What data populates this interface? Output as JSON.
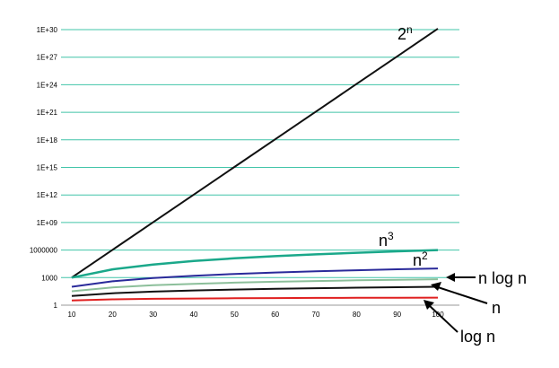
{
  "chart_data": {
    "type": "line",
    "title": "",
    "xlabel": "",
    "ylabel": "",
    "y_scale": "log",
    "grid": "horizontal",
    "grid_color": "#40c4a8",
    "x": [
      10,
      20,
      30,
      40,
      50,
      60,
      70,
      80,
      90,
      100
    ],
    "x_tick_labels": [
      "10",
      "20",
      "30",
      "40",
      "50",
      "60",
      "70",
      "80",
      "90",
      "100"
    ],
    "xlim": [
      10,
      100
    ],
    "y_ticks": [
      {
        "value": 1,
        "label": "1"
      },
      {
        "value": 1000,
        "label": "1000"
      },
      {
        "value": 1000000,
        "label": "1000000"
      },
      {
        "value": 1000000000.0,
        "label": "1E+09"
      },
      {
        "value": 1000000000000.0,
        "label": "1E+12"
      },
      {
        "value": 1000000000000000.0,
        "label": "1E+15"
      },
      {
        "value": 1e+18,
        "label": "1E+18"
      },
      {
        "value": 1e+21,
        "label": "1E+21"
      },
      {
        "value": 1e+24,
        "label": "1E+24"
      },
      {
        "value": 1e+27,
        "label": "1E+27"
      },
      {
        "value": 1e+30,
        "label": "1E+30"
      }
    ],
    "ylim": [
      1,
      1e+30
    ],
    "series": [
      {
        "name": "2",
        "sup": "n",
        "color": "#111111",
        "values": [
          1024,
          1048576,
          1073741824,
          1099511627776,
          1125899906842624,
          1152921504606846976,
          1.1805916207174113e+21,
          1.2089258196146292e+24,
          1.2379400392853803e+27,
          1.2676506002282294e+30
        ]
      },
      {
        "name": "n",
        "sup": "3",
        "color": "#1aa88a",
        "values": [
          1000,
          8000,
          27000,
          64000,
          125000,
          216000,
          343000,
          512000,
          729000,
          1000000
        ]
      },
      {
        "name": "n",
        "sup": "2",
        "color": "#2a2a9a",
        "values": [
          100,
          400,
          900,
          1600,
          2500,
          3600,
          4900,
          6400,
          8100,
          10000
        ]
      },
      {
        "name": "n log n",
        "sup": "",
        "color": "#8cbf9a",
        "values": [
          33,
          86,
          147,
          213,
          282,
          354,
          429,
          506,
          584,
          664
        ]
      },
      {
        "name": "n",
        "sup": "",
        "color": "#111111",
        "values": [
          10,
          20,
          30,
          40,
          50,
          60,
          70,
          80,
          90,
          100
        ]
      },
      {
        "name": "log n",
        "sup": "",
        "color": "#e02020",
        "values": [
          3.32,
          4.32,
          4.91,
          5.32,
          5.64,
          5.91,
          6.13,
          6.32,
          6.49,
          6.64
        ]
      }
    ]
  }
}
